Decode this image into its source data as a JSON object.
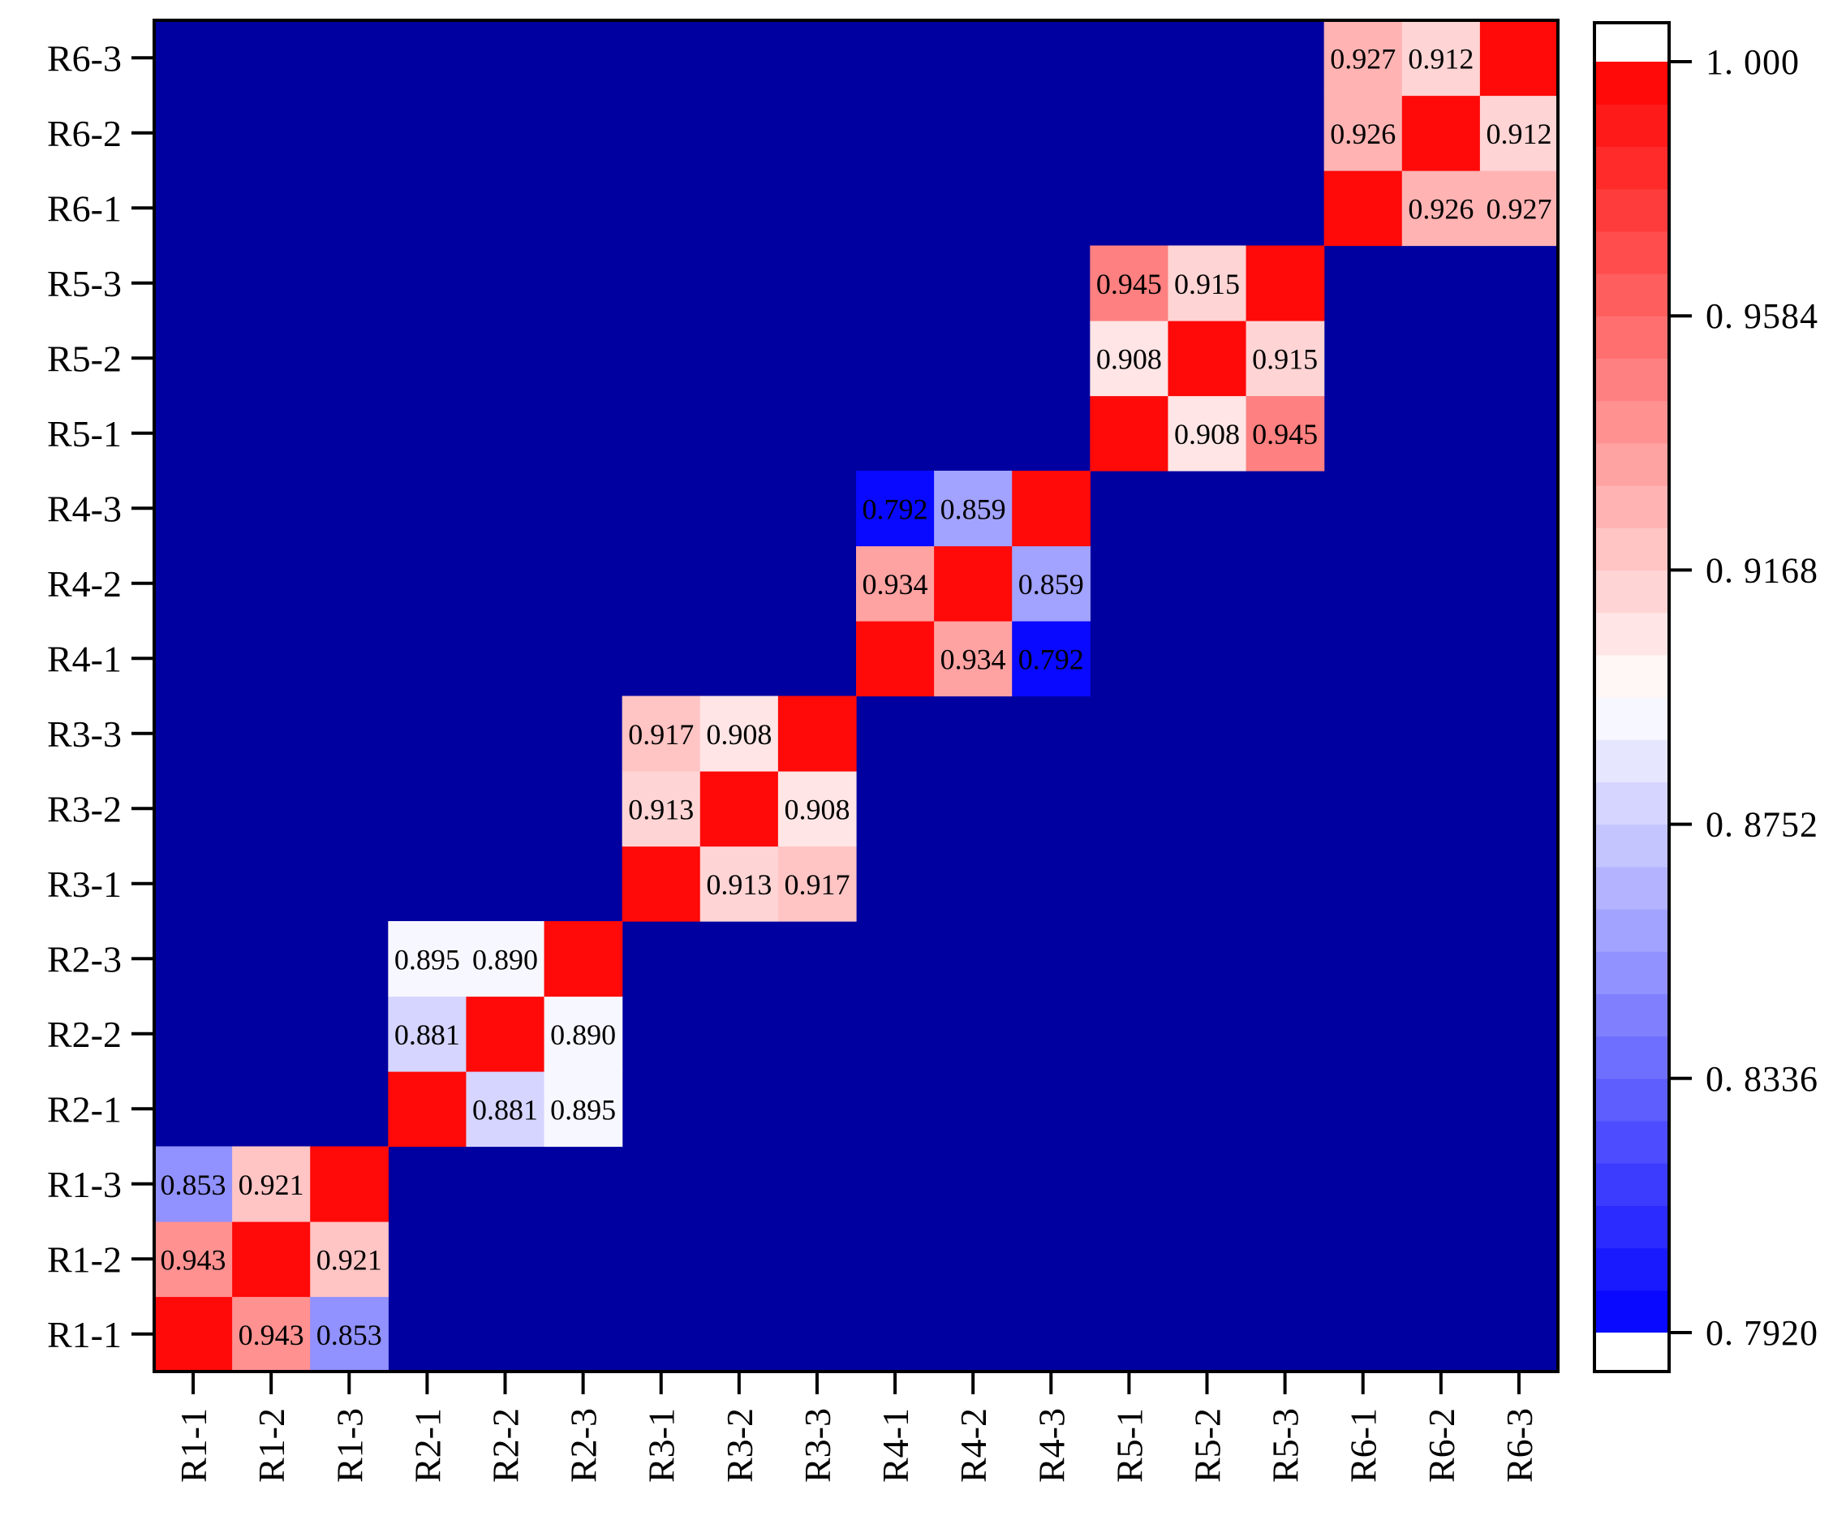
{
  "chart_data": {
    "type": "heatmap",
    "title": "",
    "xlabel": "",
    "ylabel": "",
    "x_categories": [
      "R1-1",
      "R1-2",
      "R1-3",
      "R2-1",
      "R2-2",
      "R2-3",
      "R3-1",
      "R3-2",
      "R3-3",
      "R4-1",
      "R4-2",
      "R4-3",
      "R5-1",
      "R5-2",
      "R5-3",
      "R6-1",
      "R6-2",
      "R6-3"
    ],
    "y_categories": [
      "R1-1",
      "R1-2",
      "R1-3",
      "R2-1",
      "R2-2",
      "R2-3",
      "R3-1",
      "R3-2",
      "R3-3",
      "R4-1",
      "R4-2",
      "R4-3",
      "R5-1",
      "R5-2",
      "R5-3",
      "R6-1",
      "R6-2",
      "R6-3"
    ],
    "y_order": "bottom-to-top",
    "diagonal_value": 1.0,
    "background_color": "#0000A0",
    "blocks": [
      {
        "members": [
          "R1-1",
          "R1-2",
          "R1-3"
        ],
        "values": [
          [
            1.0,
            0.943,
            0.853
          ],
          [
            0.943,
            1.0,
            0.921
          ],
          [
            0.853,
            0.921,
            1.0
          ]
        ],
        "labels": [
          [
            "",
            "0.943",
            "0.853"
          ],
          [
            "0.943",
            "",
            "0.921"
          ],
          [
            "0.853",
            "0.921",
            ""
          ]
        ]
      },
      {
        "members": [
          "R2-1",
          "R2-2",
          "R2-3"
        ],
        "values": [
          [
            1.0,
            0.881,
            0.895
          ],
          [
            0.881,
            1.0,
            0.89
          ],
          [
            0.895,
            0.89,
            1.0
          ]
        ],
        "labels": [
          [
            "",
            "0.881",
            "0.895"
          ],
          [
            "0.881",
            "",
            "0.890"
          ],
          [
            "0.895",
            "0.890",
            ""
          ]
        ]
      },
      {
        "members": [
          "R3-1",
          "R3-2",
          "R3-3"
        ],
        "values": [
          [
            1.0,
            0.913,
            0.917
          ],
          [
            0.913,
            1.0,
            0.908
          ],
          [
            0.917,
            0.908,
            1.0
          ]
        ],
        "labels": [
          [
            "",
            "0.913",
            "0.917"
          ],
          [
            "0.913",
            "",
            "0.908"
          ],
          [
            "0.917",
            "0.908",
            ""
          ]
        ]
      },
      {
        "members": [
          "R4-1",
          "R4-2",
          "R4-3"
        ],
        "values": [
          [
            1.0,
            0.934,
            0.792
          ],
          [
            0.934,
            1.0,
            0.859
          ],
          [
            0.792,
            0.859,
            1.0
          ]
        ],
        "labels": [
          [
            "",
            "0.934",
            "0.792"
          ],
          [
            "0.934",
            "",
            "0.859"
          ],
          [
            "0.792",
            "0.859",
            ""
          ]
        ]
      },
      {
        "members": [
          "R5-1",
          "R5-2",
          "R5-3"
        ],
        "values": [
          [
            1.0,
            0.908,
            0.945
          ],
          [
            0.908,
            1.0,
            0.915
          ],
          [
            0.945,
            0.915,
            1.0
          ]
        ],
        "labels": [
          [
            "",
            "0.908",
            "0.945"
          ],
          [
            "0.908",
            "",
            "0.915"
          ],
          [
            "0.945",
            "0.915",
            ""
          ]
        ]
      },
      {
        "members": [
          "R6-1",
          "R6-2",
          "R6-3"
        ],
        "values": [
          [
            1.0,
            0.926,
            0.927
          ],
          [
            0.926,
            1.0,
            0.912
          ],
          [
            0.927,
            0.912,
            1.0
          ]
        ],
        "labels": [
          [
            "",
            "0.926",
            "0.927"
          ],
          [
            "0.926",
            "",
            "0.912"
          ],
          [
            "0.927",
            "0.912",
            ""
          ]
        ]
      }
    ],
    "colorbar": {
      "min": 0.792,
      "max": 1.0,
      "levels": 30,
      "tick_values": [
        0.792,
        0.8336,
        0.8752,
        0.9168,
        0.9584,
        1.0
      ],
      "tick_labels": [
        "0. 7920",
        "0. 8336",
        "0. 8752",
        "0. 9168",
        "0. 9584",
        "1. 000"
      ],
      "colors": {
        "low": "#0000FF",
        "mid": "#FFFFFF",
        "high": "#FF0000",
        "end_caps": "#FFFFFF"
      }
    },
    "grid": false,
    "legend": "colorbar-right"
  }
}
